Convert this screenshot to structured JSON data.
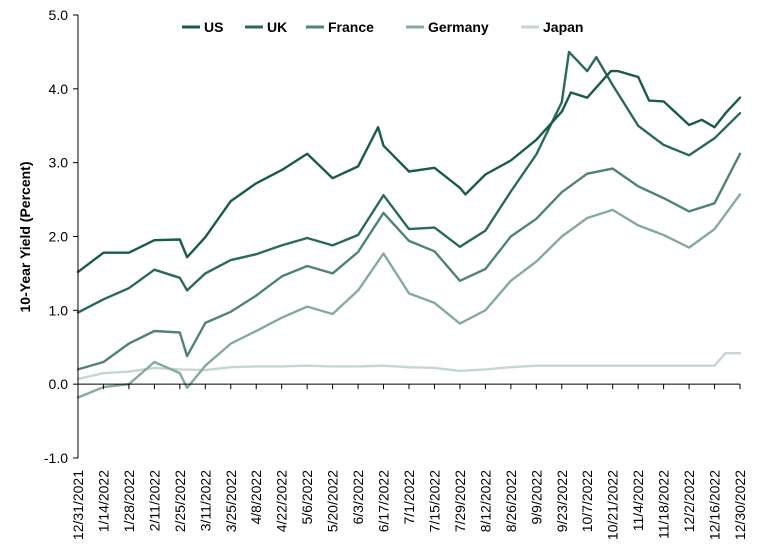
{
  "chart_data": {
    "type": "line",
    "title": "",
    "xlabel": "",
    "ylabel": "10-Year Yield (Percent)",
    "ylim": [
      -1.0,
      5.0
    ],
    "y_ticks": [
      "5.0",
      "4.0",
      "3.0",
      "2.0",
      "1.0",
      "0.0",
      "-1.0"
    ],
    "x_range": [
      "2021-12-31",
      "2022-12-30"
    ],
    "x_ticks": [
      "12/31/2021",
      "1/14/2022",
      "1/28/2022",
      "2/11/2022",
      "2/25/2022",
      "3/11/2022",
      "3/25/2022",
      "4/8/2022",
      "4/22/2022",
      "5/6/2022",
      "5/20/2022",
      "6/3/2022",
      "6/17/2022",
      "7/1/2022",
      "7/15/2022",
      "7/29/2022",
      "8/12/2022",
      "8/26/2022",
      "9/9/2022",
      "9/23/2022",
      "10/7/2022",
      "10/21/2022",
      "11/4/2022",
      "11/18/2022",
      "12/2/2022",
      "12/16/2022",
      "12/30/2022"
    ],
    "grid": false,
    "legend_position": "top",
    "series": [
      {
        "name": "US",
        "color": "#1a5c46",
        "x": [
          "2021-12-31",
          "2022-01-14",
          "2022-01-28",
          "2022-02-11",
          "2022-02-25",
          "2022-03-01",
          "2022-03-11",
          "2022-03-25",
          "2022-04-08",
          "2022-04-22",
          "2022-05-06",
          "2022-05-20",
          "2022-06-03",
          "2022-06-14",
          "2022-06-17",
          "2022-07-01",
          "2022-07-15",
          "2022-07-29",
          "2022-08-01",
          "2022-08-12",
          "2022-08-26",
          "2022-09-09",
          "2022-09-23",
          "2022-09-28",
          "2022-10-07",
          "2022-10-20",
          "2022-10-24",
          "2022-11-04",
          "2022-11-10",
          "2022-11-18",
          "2022-12-02",
          "2022-12-09",
          "2022-12-16",
          "2022-12-22",
          "2022-12-30"
        ],
        "values": [
          1.52,
          1.78,
          1.78,
          1.95,
          1.96,
          1.72,
          1.99,
          2.48,
          2.72,
          2.9,
          3.12,
          2.79,
          2.95,
          3.48,
          3.23,
          2.88,
          2.93,
          2.66,
          2.57,
          2.84,
          3.03,
          3.31,
          3.69,
          3.95,
          3.88,
          4.24,
          4.24,
          4.16,
          3.84,
          3.83,
          3.51,
          3.58,
          3.48,
          3.67,
          3.88
        ]
      },
      {
        "name": "UK",
        "color": "#2a6b54",
        "x": [
          "2021-12-31",
          "2022-01-14",
          "2022-01-28",
          "2022-02-11",
          "2022-02-25",
          "2022-03-01",
          "2022-03-11",
          "2022-03-25",
          "2022-04-08",
          "2022-04-22",
          "2022-05-06",
          "2022-05-20",
          "2022-06-03",
          "2022-06-17",
          "2022-07-01",
          "2022-07-15",
          "2022-07-29",
          "2022-08-12",
          "2022-08-26",
          "2022-09-09",
          "2022-09-23",
          "2022-09-27",
          "2022-10-07",
          "2022-10-12",
          "2022-10-21",
          "2022-11-04",
          "2022-11-18",
          "2022-12-02",
          "2022-12-16",
          "2022-12-30"
        ],
        "values": [
          0.97,
          1.15,
          1.3,
          1.55,
          1.44,
          1.27,
          1.5,
          1.68,
          1.76,
          1.88,
          1.98,
          1.88,
          2.02,
          2.56,
          2.1,
          2.12,
          1.86,
          2.08,
          2.61,
          3.11,
          3.82,
          4.5,
          4.24,
          4.43,
          4.05,
          3.5,
          3.24,
          3.1,
          3.33,
          3.67
        ]
      },
      {
        "name": "France",
        "color": "#4f8570",
        "x": [
          "2021-12-31",
          "2022-01-14",
          "2022-01-28",
          "2022-02-11",
          "2022-02-25",
          "2022-03-01",
          "2022-03-11",
          "2022-03-25",
          "2022-04-08",
          "2022-04-22",
          "2022-05-06",
          "2022-05-20",
          "2022-06-03",
          "2022-06-17",
          "2022-07-01",
          "2022-07-15",
          "2022-07-29",
          "2022-08-12",
          "2022-08-26",
          "2022-09-09",
          "2022-09-23",
          "2022-10-07",
          "2022-10-21",
          "2022-11-04",
          "2022-11-18",
          "2022-12-02",
          "2022-12-16",
          "2022-12-30"
        ],
        "values": [
          0.2,
          0.3,
          0.55,
          0.72,
          0.7,
          0.38,
          0.83,
          0.98,
          1.2,
          1.46,
          1.6,
          1.5,
          1.79,
          2.32,
          1.94,
          1.8,
          1.4,
          1.56,
          2.0,
          2.24,
          2.6,
          2.85,
          2.92,
          2.68,
          2.52,
          2.34,
          2.45,
          3.12
        ]
      },
      {
        "name": "Germany",
        "color": "#86aa9c",
        "x": [
          "2021-12-31",
          "2022-01-14",
          "2022-01-28",
          "2022-02-11",
          "2022-02-25",
          "2022-03-01",
          "2022-03-11",
          "2022-03-25",
          "2022-04-08",
          "2022-04-22",
          "2022-05-06",
          "2022-05-20",
          "2022-06-03",
          "2022-06-17",
          "2022-07-01",
          "2022-07-15",
          "2022-07-29",
          "2022-08-12",
          "2022-08-26",
          "2022-09-09",
          "2022-09-23",
          "2022-10-07",
          "2022-10-21",
          "2022-11-04",
          "2022-11-18",
          "2022-12-02",
          "2022-12-16",
          "2022-12-30"
        ],
        "values": [
          -0.18,
          -0.04,
          0.0,
          0.3,
          0.15,
          -0.05,
          0.25,
          0.55,
          0.72,
          0.9,
          1.05,
          0.95,
          1.27,
          1.77,
          1.23,
          1.1,
          0.82,
          1.0,
          1.4,
          1.66,
          2.0,
          2.25,
          2.36,
          2.15,
          2.02,
          1.85,
          2.1,
          2.57
        ]
      },
      {
        "name": "Japan",
        "color": "#c5d6cf",
        "x": [
          "2021-12-31",
          "2022-01-14",
          "2022-01-28",
          "2022-02-11",
          "2022-02-25",
          "2022-03-11",
          "2022-03-25",
          "2022-04-08",
          "2022-04-22",
          "2022-05-06",
          "2022-05-20",
          "2022-06-03",
          "2022-06-17",
          "2022-07-01",
          "2022-07-15",
          "2022-07-29",
          "2022-08-12",
          "2022-08-26",
          "2022-09-09",
          "2022-09-23",
          "2022-10-07",
          "2022-10-21",
          "2022-11-04",
          "2022-11-18",
          "2022-12-02",
          "2022-12-16",
          "2022-12-22",
          "2022-12-30"
        ],
        "values": [
          0.07,
          0.15,
          0.17,
          0.22,
          0.2,
          0.19,
          0.23,
          0.24,
          0.24,
          0.25,
          0.24,
          0.24,
          0.25,
          0.23,
          0.22,
          0.18,
          0.2,
          0.23,
          0.25,
          0.25,
          0.25,
          0.25,
          0.25,
          0.25,
          0.25,
          0.25,
          0.42,
          0.42
        ]
      }
    ]
  }
}
